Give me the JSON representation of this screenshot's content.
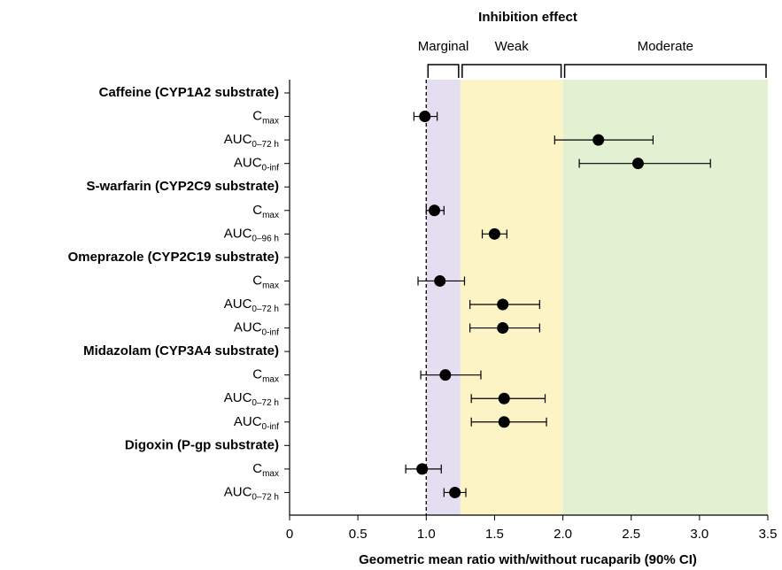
{
  "chart_data": {
    "type": "forest",
    "title": "Inhibition effect",
    "x_label": "Geometric mean ratio with/without rucaparib (90% CI)",
    "categories": [
      "Caffeine (CYP1A2 substrate)",
      "C",
      "AUC",
      "AUC",
      "S-warfarin (CYP2C9 substrate)",
      "C",
      "AUC",
      "Omeprazole (CYP2C19 substrate)",
      "C",
      "AUC",
      "AUC",
      "Midazolam (CYP3A4 substrate)",
      "C",
      "AUC",
      "AUC",
      "Digoxin (P-gp substrate)",
      "C",
      "AUC"
    ],
    "subscripts": [
      null,
      "max",
      "0–72 h",
      "0-inf",
      null,
      "max",
      "0–96 h",
      null,
      "max",
      "0–72 h",
      "0-inf",
      null,
      "max",
      "0–72 h",
      "0-inf",
      null,
      "max",
      "0–72 h"
    ],
    "values": [
      null,
      0.99,
      2.26,
      2.55,
      null,
      1.06,
      1.5,
      null,
      1.1,
      1.56,
      1.56,
      null,
      1.14,
      1.57,
      1.57,
      null,
      0.97,
      1.21
    ],
    "ci_low": [
      null,
      0.91,
      1.94,
      2.12,
      null,
      1.0,
      1.41,
      null,
      0.94,
      1.32,
      1.32,
      null,
      0.96,
      1.33,
      1.33,
      null,
      0.85,
      1.13
    ],
    "ci_high": [
      null,
      1.08,
      2.66,
      3.08,
      null,
      1.13,
      1.59,
      null,
      1.28,
      1.83,
      1.83,
      null,
      1.4,
      1.87,
      1.88,
      null,
      1.11,
      1.29
    ],
    "color": "#000000",
    "regions": [
      {
        "name": "Marginal",
        "from": 1,
        "to": 1.25,
        "color": "#e4def0"
      },
      {
        "name": "Weak",
        "from": 1.25,
        "to": 2,
        "color": "#fdf4c6"
      },
      {
        "name": "Moderate",
        "from": 2,
        "to": 3.5,
        "color": "#e2f1d2"
      }
    ],
    "reference_line": 1,
    "xlim": [
      0,
      3.5
    ],
    "xticks": [
      0,
      0.5,
      {
        "value": 1,
        "label": "1.0"
      },
      1.5,
      {
        "value": 2,
        "label": "2.0"
      },
      2.5,
      {
        "value": 3,
        "label": "3.0"
      },
      3.5
    ]
  }
}
